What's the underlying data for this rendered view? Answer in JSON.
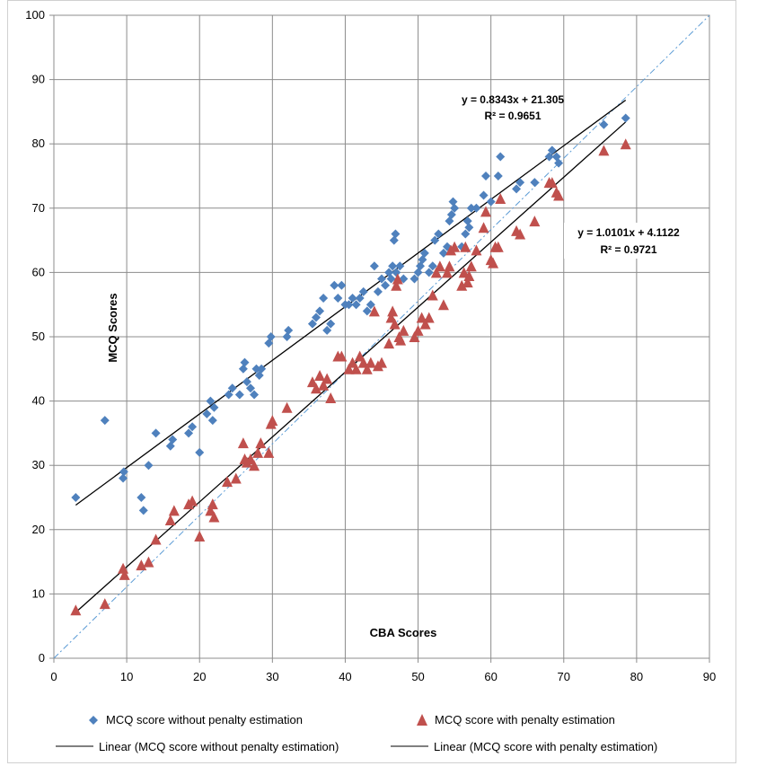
{
  "chart_data": {
    "type": "scatter",
    "title": "",
    "xlabel": "CBA Scores",
    "ylabel": "MCQ Scores",
    "xlim": [
      0,
      90
    ],
    "ylim": [
      0,
      100
    ],
    "xticks": [
      0,
      10,
      20,
      30,
      40,
      50,
      60,
      70,
      80,
      90
    ],
    "yticks": [
      0,
      10,
      20,
      30,
      40,
      50,
      60,
      70,
      80,
      90,
      100
    ],
    "grid": true,
    "legend_position": "bottom",
    "series": [
      {
        "name": "MCQ score without penalty estimation",
        "marker": "diamond",
        "color": "#4f81bd",
        "points": [
          [
            3,
            25
          ],
          [
            7,
            37
          ],
          [
            9.5,
            28
          ],
          [
            9.6,
            29
          ],
          [
            12,
            25
          ],
          [
            12.3,
            23
          ],
          [
            13,
            30
          ],
          [
            14,
            35
          ],
          [
            16,
            33
          ],
          [
            16.3,
            34
          ],
          [
            18.5,
            35
          ],
          [
            19,
            36
          ],
          [
            20,
            32
          ],
          [
            21,
            38
          ],
          [
            21.5,
            40
          ],
          [
            21.8,
            37
          ],
          [
            22,
            39
          ],
          [
            24,
            41
          ],
          [
            24.5,
            42
          ],
          [
            25.5,
            41
          ],
          [
            26,
            45
          ],
          [
            26.2,
            46
          ],
          [
            26.5,
            43
          ],
          [
            27,
            42
          ],
          [
            27.5,
            41
          ],
          [
            27.8,
            45
          ],
          [
            28.2,
            44
          ],
          [
            28.5,
            45
          ],
          [
            29.5,
            49
          ],
          [
            29.8,
            50
          ],
          [
            32,
            50
          ],
          [
            32.2,
            51
          ],
          [
            35.5,
            52
          ],
          [
            36,
            53
          ],
          [
            36.5,
            54
          ],
          [
            37,
            56
          ],
          [
            37.5,
            51
          ],
          [
            38,
            52
          ],
          [
            38.5,
            58
          ],
          [
            39,
            56
          ],
          [
            39.5,
            58
          ],
          [
            40,
            55
          ],
          [
            40.5,
            55
          ],
          [
            41,
            56
          ],
          [
            41.5,
            55
          ],
          [
            42,
            56
          ],
          [
            42.5,
            57
          ],
          [
            43,
            54
          ],
          [
            43.5,
            55
          ],
          [
            44,
            61
          ],
          [
            44.5,
            57
          ],
          [
            45,
            59
          ],
          [
            45.5,
            58
          ],
          [
            46,
            60
          ],
          [
            46.3,
            59
          ],
          [
            46.5,
            61
          ],
          [
            46.7,
            65
          ],
          [
            46.9,
            66
          ],
          [
            47,
            60
          ],
          [
            47.5,
            61
          ],
          [
            48,
            59
          ],
          [
            49.5,
            59
          ],
          [
            50,
            60
          ],
          [
            50.3,
            61
          ],
          [
            50.6,
            62
          ],
          [
            50.9,
            63
          ],
          [
            51.5,
            60
          ],
          [
            52,
            61
          ],
          [
            52.3,
            65
          ],
          [
            52.8,
            66
          ],
          [
            53.5,
            63
          ],
          [
            54,
            64
          ],
          [
            54.3,
            68
          ],
          [
            54.6,
            69
          ],
          [
            54.8,
            71
          ],
          [
            55,
            70
          ],
          [
            56,
            64
          ],
          [
            56.5,
            66
          ],
          [
            57,
            67
          ],
          [
            56.8,
            68
          ],
          [
            57.3,
            70
          ],
          [
            58,
            70
          ],
          [
            59,
            72
          ],
          [
            59.3,
            75
          ],
          [
            60,
            71
          ],
          [
            61,
            75
          ],
          [
            61.3,
            78
          ],
          [
            63.5,
            73
          ],
          [
            64,
            74
          ],
          [
            66,
            74
          ],
          [
            68,
            78
          ],
          [
            68.4,
            79
          ],
          [
            69,
            78
          ],
          [
            69.3,
            77
          ],
          [
            75.5,
            83
          ],
          [
            78.5,
            84
          ]
        ]
      },
      {
        "name": "MCQ score with penalty estimation",
        "marker": "triangle",
        "color": "#c0504d",
        "points": [
          [
            3,
            7.5
          ],
          [
            7,
            8.5
          ],
          [
            9.5,
            14
          ],
          [
            9.7,
            13
          ],
          [
            12,
            14.5
          ],
          [
            13,
            15
          ],
          [
            14,
            18.5
          ],
          [
            16,
            21.5
          ],
          [
            16.5,
            23
          ],
          [
            18.5,
            24
          ],
          [
            19,
            24.5
          ],
          [
            20,
            19
          ],
          [
            21.5,
            23
          ],
          [
            21.8,
            24
          ],
          [
            22,
            22
          ],
          [
            23.8,
            27.5
          ],
          [
            25,
            28
          ],
          [
            26,
            33.5
          ],
          [
            26.2,
            31
          ],
          [
            26.5,
            30.5
          ],
          [
            27,
            31
          ],
          [
            27.5,
            30
          ],
          [
            28,
            32
          ],
          [
            28.4,
            33.5
          ],
          [
            29.5,
            32
          ],
          [
            29.8,
            36.5
          ],
          [
            30,
            37
          ],
          [
            32,
            39
          ],
          [
            35.5,
            43
          ],
          [
            36,
            42
          ],
          [
            36.5,
            44
          ],
          [
            37,
            42.5
          ],
          [
            37.5,
            43.5
          ],
          [
            38,
            40.5
          ],
          [
            39,
            47
          ],
          [
            39.5,
            47
          ],
          [
            40.5,
            45
          ],
          [
            41,
            46
          ],
          [
            41.5,
            45
          ],
          [
            42,
            47
          ],
          [
            42.5,
            46
          ],
          [
            43,
            45
          ],
          [
            43.5,
            46
          ],
          [
            44,
            54
          ],
          [
            44.5,
            45.5
          ],
          [
            45,
            46
          ],
          [
            46,
            49
          ],
          [
            46.3,
            53
          ],
          [
            46.5,
            54
          ],
          [
            46.8,
            52
          ],
          [
            47,
            58
          ],
          [
            47.2,
            59
          ],
          [
            47.4,
            50
          ],
          [
            47.6,
            49.5
          ],
          [
            48,
            51
          ],
          [
            49.5,
            50
          ],
          [
            50,
            51
          ],
          [
            50.5,
            53
          ],
          [
            51,
            52
          ],
          [
            51.5,
            53
          ],
          [
            52,
            56.5
          ],
          [
            52.5,
            60
          ],
          [
            53,
            61
          ],
          [
            53.5,
            55
          ],
          [
            54,
            60
          ],
          [
            54.3,
            61
          ],
          [
            54.5,
            63.5
          ],
          [
            55,
            64
          ],
          [
            56,
            58
          ],
          [
            56.3,
            60
          ],
          [
            56.5,
            64
          ],
          [
            56.8,
            58.5
          ],
          [
            57,
            59.5
          ],
          [
            57.3,
            61
          ],
          [
            58,
            63.5
          ],
          [
            59,
            67
          ],
          [
            59.3,
            69.5
          ],
          [
            60,
            62
          ],
          [
            60.3,
            61.5
          ],
          [
            60.6,
            64
          ],
          [
            61,
            64
          ],
          [
            61.3,
            71.5
          ],
          [
            63.5,
            66.5
          ],
          [
            64,
            66
          ],
          [
            66,
            68
          ],
          [
            68,
            74
          ],
          [
            68.4,
            74
          ],
          [
            69,
            72.5
          ],
          [
            69.3,
            72
          ],
          [
            75.5,
            79
          ],
          [
            78.5,
            80
          ]
        ]
      }
    ],
    "trendlines": [
      {
        "name": "Linear (MCQ score without penalty estimation)",
        "slope": 0.8343,
        "intercept": 21.305,
        "x_range": [
          3,
          78.5
        ],
        "equation": "y = 0.8343x + 21.305",
        "r2": "R² = 0.9651"
      },
      {
        "name": "Linear (MCQ score with penalty estimation)",
        "slope": 1.0101,
        "intercept": 4.1122,
        "x_range": [
          3,
          78.5
        ],
        "equation": "y = 1.0101x + 4.1122",
        "r2": "R² = 0.9721"
      }
    ],
    "reference_line": {
      "slope": 1.111,
      "intercept": 0,
      "style": "dash-dot",
      "color": "#5b9bd5"
    }
  }
}
